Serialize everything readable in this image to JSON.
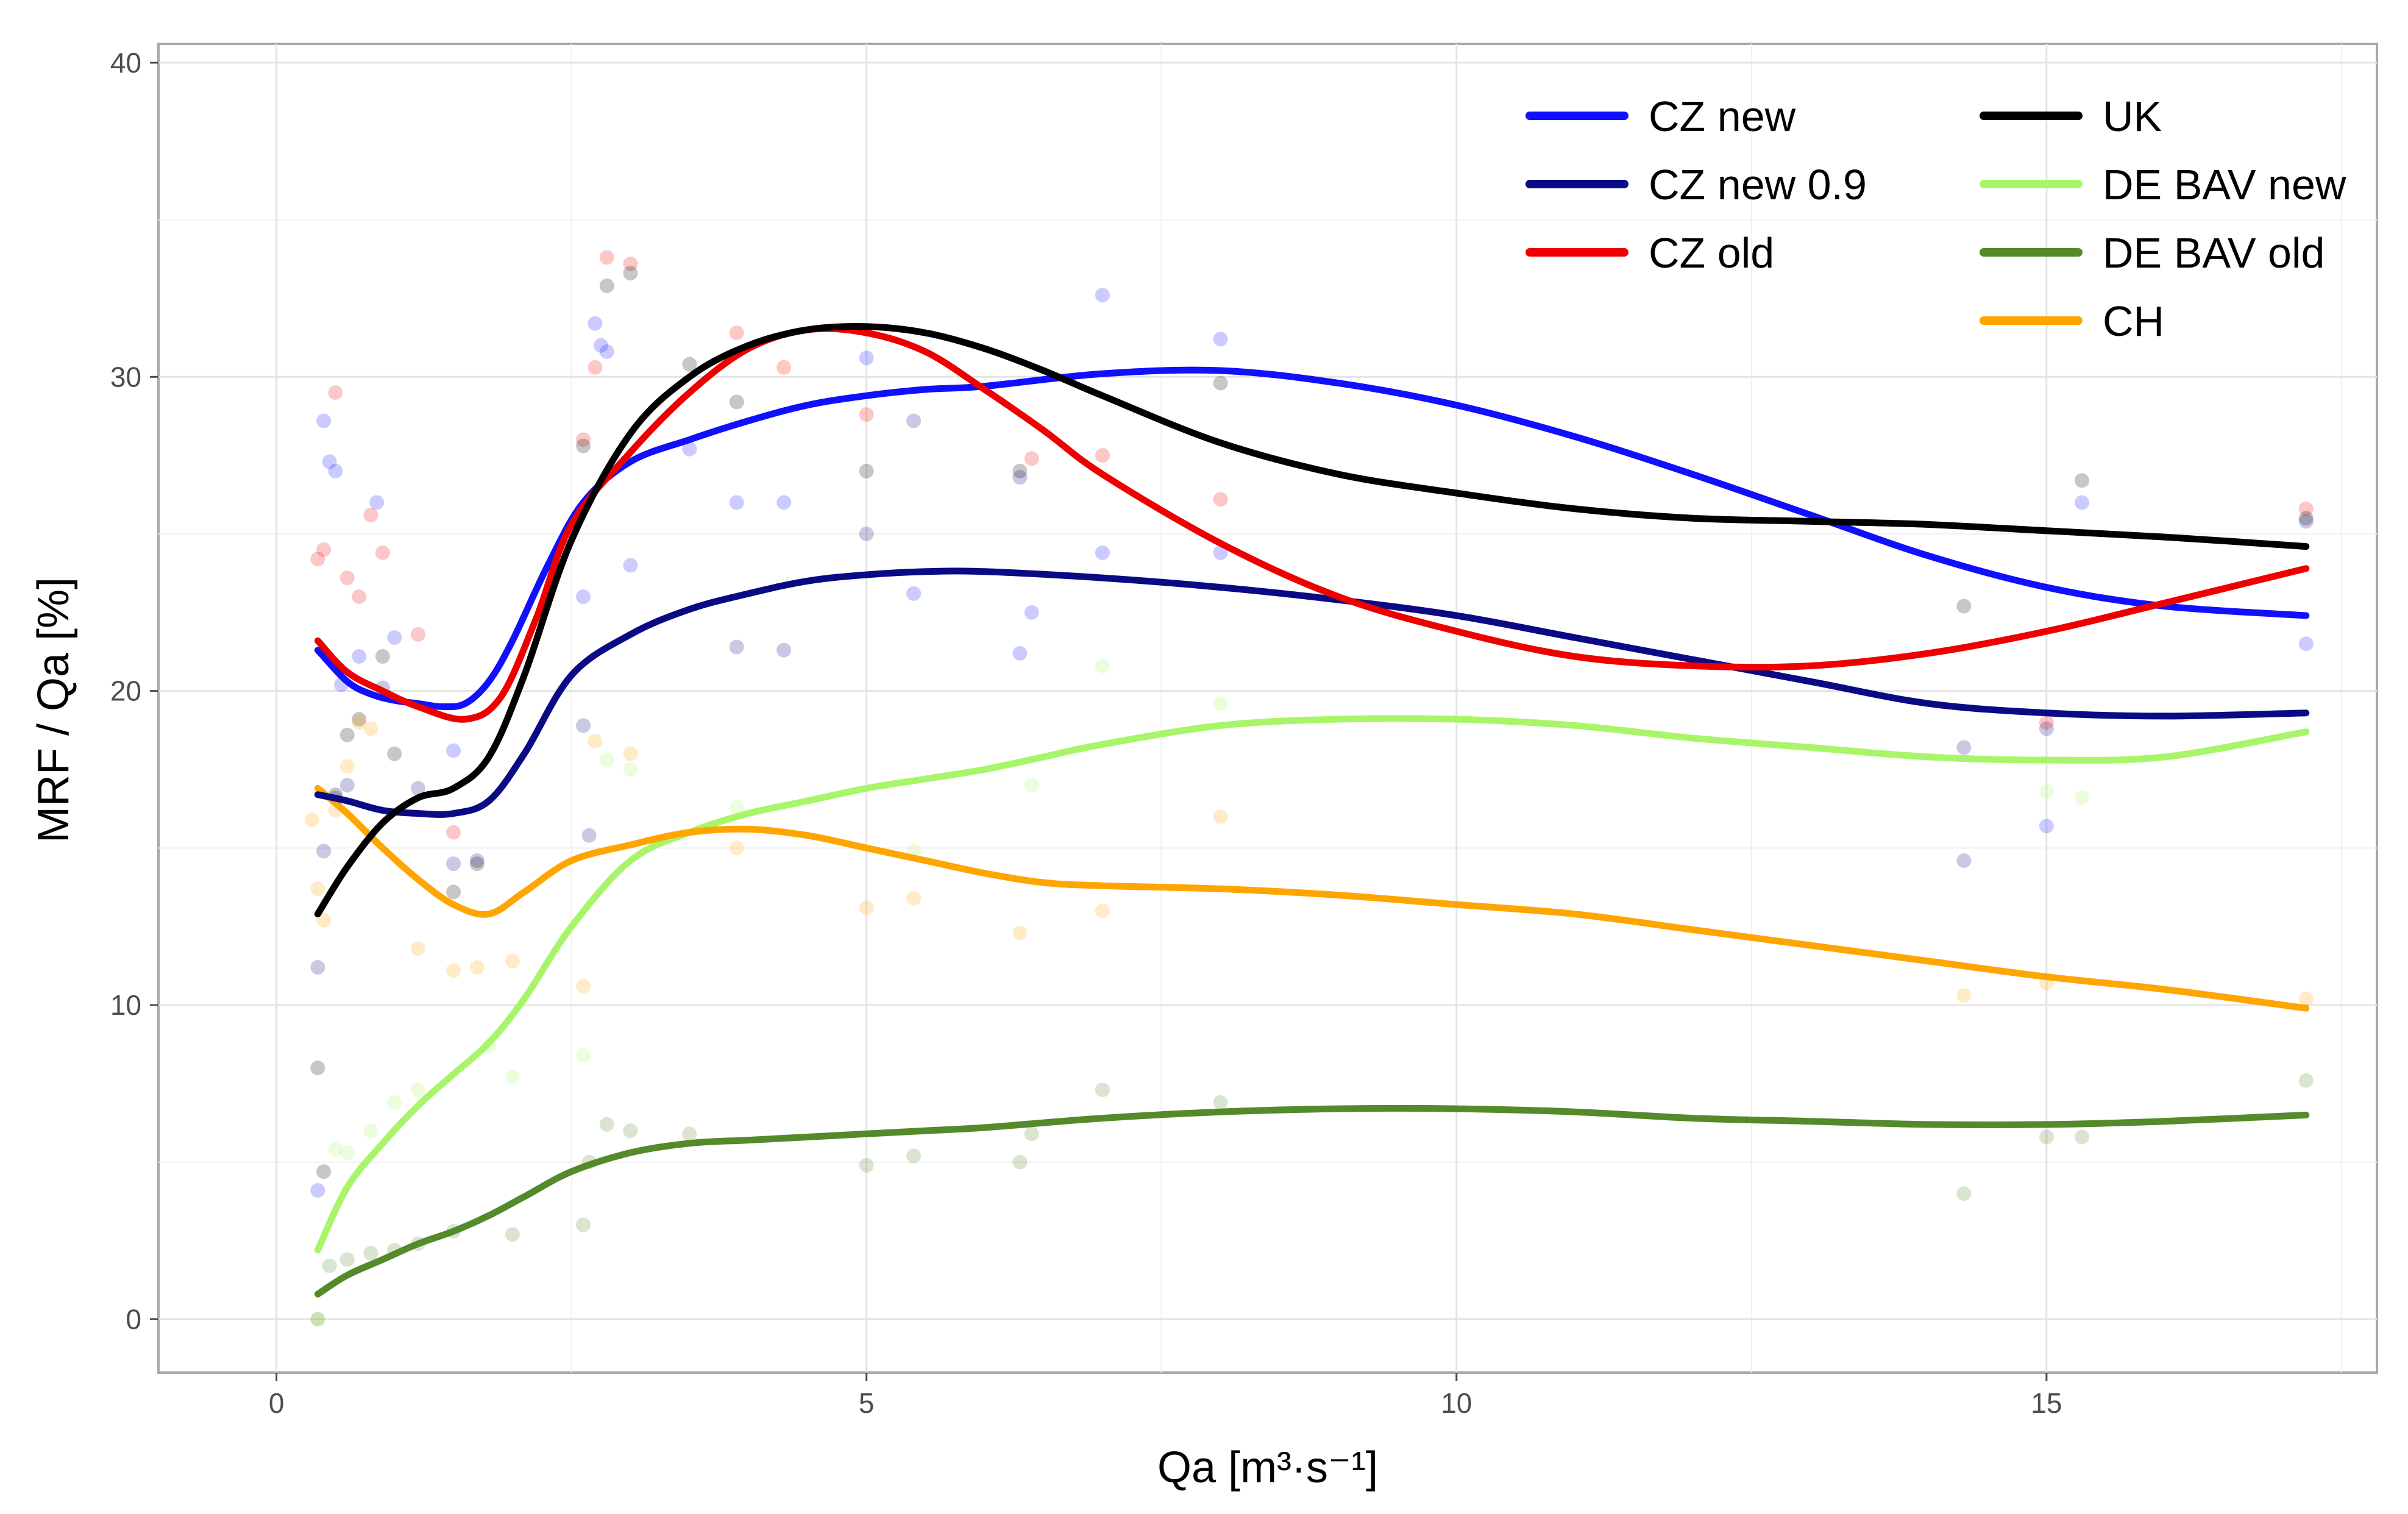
{
  "chart_data": {
    "type": "line",
    "title": "",
    "xlabel": "Qa [m³·s⁻¹]",
    "ylabel": "MRF / Qa [%]",
    "xlim": [
      -1,
      17.8
    ],
    "ylim": [
      -1.7,
      40.6
    ],
    "x_ticks": [
      0,
      5,
      10,
      15
    ],
    "y_ticks": [
      0,
      10,
      20,
      30,
      40
    ],
    "x_tick_labels": [
      "0",
      "5",
      "10",
      "15"
    ],
    "y_tick_labels": [
      "0",
      "10",
      "20",
      "30",
      "40"
    ],
    "grid": true,
    "legend_position": "top-right",
    "series": [
      {
        "name": "CZ new",
        "color": "#1010ff",
        "x": [
          0.35,
          0.6,
          0.8,
          1.0,
          1.2,
          1.4,
          1.6,
          1.8,
          2.0,
          2.3,
          2.6,
          3.0,
          3.5,
          4.0,
          4.5,
          5.0,
          5.5,
          6.0,
          7.0,
          8.0,
          9.0,
          10.0,
          11.0,
          12.0,
          13.0,
          14.0,
          15.0,
          16.0,
          17.2
        ],
        "values": [
          21.3,
          20.3,
          19.9,
          19.7,
          19.6,
          19.5,
          19.6,
          20.3,
          21.6,
          24.0,
          26.0,
          27.3,
          28.0,
          28.6,
          29.1,
          29.4,
          29.6,
          29.7,
          30.1,
          30.2,
          29.8,
          29.1,
          28.1,
          26.9,
          25.6,
          24.3,
          23.3,
          22.7,
          22.4
        ],
        "points": [
          [
            0.35,
            4.1
          ],
          [
            0.4,
            28.6
          ],
          [
            0.45,
            27.3
          ],
          [
            0.5,
            27.0
          ],
          [
            0.55,
            20.2
          ],
          [
            0.7,
            21.1
          ],
          [
            0.85,
            26.0
          ],
          [
            1.0,
            21.7
          ],
          [
            1.5,
            18.1
          ],
          [
            2.6,
            23.0
          ],
          [
            2.7,
            31.7
          ],
          [
            2.75,
            31.0
          ],
          [
            2.8,
            30.8
          ],
          [
            3.0,
            24.0
          ],
          [
            3.5,
            27.7
          ],
          [
            3.9,
            26.0
          ],
          [
            4.3,
            26.0
          ],
          [
            5.0,
            30.6
          ],
          [
            5.4,
            23.1
          ],
          [
            6.3,
            21.2
          ],
          [
            6.4,
            22.5
          ],
          [
            7.0,
            32.6
          ],
          [
            7.0,
            24.4
          ],
          [
            8.0,
            31.2
          ],
          [
            8.0,
            24.4
          ],
          [
            15.0,
            15.7
          ],
          [
            15.3,
            26.0
          ],
          [
            17.2,
            21.5
          ]
        ]
      },
      {
        "name": "CZ new 0.9",
        "color": "#0a0a85",
        "x": [
          0.35,
          0.6,
          0.9,
          1.2,
          1.5,
          1.8,
          2.1,
          2.5,
          3.0,
          3.5,
          4.0,
          4.5,
          5.0,
          5.5,
          6.0,
          7.0,
          8.0,
          9.0,
          10.0,
          11.0,
          12.0,
          13.0,
          14.0,
          15.0,
          16.0,
          17.2
        ],
        "values": [
          16.7,
          16.5,
          16.2,
          16.1,
          16.1,
          16.5,
          18.0,
          20.5,
          21.8,
          22.6,
          23.1,
          23.5,
          23.7,
          23.8,
          23.8,
          23.6,
          23.3,
          22.9,
          22.4,
          21.7,
          21.0,
          20.3,
          19.6,
          19.3,
          19.2,
          19.3
        ],
        "points": [
          [
            0.35,
            11.2
          ],
          [
            0.4,
            14.9
          ],
          [
            0.5,
            16.6
          ],
          [
            0.6,
            17.0
          ],
          [
            0.9,
            20.1
          ],
          [
            1.2,
            16.9
          ],
          [
            1.5,
            14.5
          ],
          [
            1.7,
            14.6
          ],
          [
            2.6,
            18.9
          ],
          [
            2.65,
            15.4
          ],
          [
            3.9,
            21.4
          ],
          [
            4.3,
            21.3
          ],
          [
            5.0,
            25.0
          ],
          [
            5.4,
            28.6
          ],
          [
            6.3,
            26.8
          ],
          [
            14.3,
            14.6
          ],
          [
            14.3,
            18.2
          ],
          [
            15.0,
            18.8
          ],
          [
            17.2,
            25.4
          ]
        ]
      },
      {
        "name": "CZ old",
        "color": "#ee0000",
        "x": [
          0.35,
          0.6,
          0.9,
          1.2,
          1.6,
          1.9,
          2.2,
          2.5,
          3.0,
          3.5,
          4.0,
          4.5,
          5.0,
          5.5,
          6.0,
          6.5,
          7.0,
          8.0,
          9.0,
          10.0,
          11.0,
          12.0,
          13.0,
          14.0,
          15.0,
          16.0,
          17.2
        ],
        "values": [
          21.6,
          20.6,
          20.0,
          19.5,
          19.1,
          19.8,
          22.3,
          25.3,
          27.6,
          29.5,
          30.9,
          31.5,
          31.4,
          30.8,
          29.6,
          28.3,
          26.9,
          24.7,
          23.0,
          21.9,
          21.1,
          20.8,
          20.8,
          21.2,
          21.9,
          22.8,
          23.9
        ],
        "points": [
          [
            0.35,
            24.2
          ],
          [
            0.4,
            24.5
          ],
          [
            0.5,
            29.5
          ],
          [
            0.6,
            23.6
          ],
          [
            0.7,
            23.0
          ],
          [
            0.8,
            25.6
          ],
          [
            0.9,
            24.4
          ],
          [
            1.2,
            21.8
          ],
          [
            1.5,
            15.5
          ],
          [
            2.6,
            28.0
          ],
          [
            2.7,
            30.3
          ],
          [
            2.8,
            33.8
          ],
          [
            3.0,
            33.6
          ],
          [
            3.9,
            31.4
          ],
          [
            4.3,
            30.3
          ],
          [
            5.0,
            28.8
          ],
          [
            6.4,
            27.4
          ],
          [
            7.0,
            27.5
          ],
          [
            8.0,
            26.1
          ],
          [
            15.0,
            19.0
          ],
          [
            17.2,
            25.8
          ]
        ]
      },
      {
        "name": "UK",
        "color": "#000000",
        "x": [
          0.35,
          0.6,
          0.9,
          1.2,
          1.5,
          1.8,
          2.1,
          2.5,
          3.0,
          3.5,
          4.0,
          4.5,
          5.0,
          5.5,
          6.0,
          6.5,
          7.0,
          8.0,
          9.0,
          10.0,
          11.0,
          12.0,
          13.0,
          14.0,
          15.0,
          16.0,
          17.2
        ],
        "values": [
          12.9,
          14.4,
          15.8,
          16.6,
          16.9,
          17.9,
          20.5,
          24.8,
          28.2,
          30.0,
          31.0,
          31.5,
          31.6,
          31.4,
          30.9,
          30.2,
          29.4,
          27.9,
          26.9,
          26.3,
          25.8,
          25.5,
          25.4,
          25.3,
          25.1,
          24.9,
          24.6
        ],
        "points": [
          [
            0.35,
            8.0
          ],
          [
            0.4,
            4.7
          ],
          [
            0.5,
            16.7
          ],
          [
            0.6,
            18.6
          ],
          [
            0.7,
            19.1
          ],
          [
            0.9,
            21.1
          ],
          [
            1.0,
            18.0
          ],
          [
            1.5,
            13.6
          ],
          [
            1.7,
            14.5
          ],
          [
            2.6,
            27.8
          ],
          [
            2.8,
            32.9
          ],
          [
            3.0,
            33.3
          ],
          [
            3.5,
            30.4
          ],
          [
            3.9,
            29.2
          ],
          [
            5.0,
            27.0
          ],
          [
            6.3,
            27.0
          ],
          [
            8.0,
            29.8
          ],
          [
            14.3,
            22.7
          ],
          [
            15.3,
            26.7
          ],
          [
            17.2,
            25.5
          ]
        ]
      },
      {
        "name": "DE BAV new",
        "color": "#a8f56a",
        "x": [
          0.35,
          0.6,
          0.9,
          1.2,
          1.5,
          1.8,
          2.1,
          2.5,
          3.0,
          3.5,
          4.0,
          4.5,
          5.0,
          5.5,
          6.0,
          6.5,
          7.0,
          8.0,
          9.0,
          10.0,
          11.0,
          12.0,
          13.0,
          14.0,
          15.0,
          16.0,
          17.2
        ],
        "values": [
          2.2,
          4.2,
          5.6,
          6.8,
          7.8,
          8.8,
          10.2,
          12.5,
          14.6,
          15.5,
          16.1,
          16.5,
          16.9,
          17.2,
          17.5,
          17.9,
          18.3,
          18.9,
          19.1,
          19.1,
          18.9,
          18.5,
          18.2,
          17.9,
          17.8,
          17.9,
          18.7
        ],
        "points": [
          [
            0.35,
            0.0
          ],
          [
            0.5,
            5.4
          ],
          [
            0.6,
            5.3
          ],
          [
            0.8,
            6.0
          ],
          [
            1.0,
            6.9
          ],
          [
            1.2,
            7.3
          ],
          [
            1.8,
            8.7
          ],
          [
            2.0,
            7.7
          ],
          [
            2.6,
            8.4
          ],
          [
            2.8,
            17.8
          ],
          [
            3.0,
            17.5
          ],
          [
            3.9,
            16.3
          ],
          [
            5.4,
            14.9
          ],
          [
            6.4,
            17.0
          ],
          [
            7.0,
            20.8
          ],
          [
            8.0,
            19.6
          ],
          [
            15.0,
            16.8
          ],
          [
            15.3,
            16.6
          ]
        ]
      },
      {
        "name": "DE BAV old",
        "color": "#548a2a",
        "x": [
          0.35,
          0.6,
          0.9,
          1.2,
          1.5,
          1.8,
          2.1,
          2.5,
          3.0,
          3.5,
          4.0,
          4.5,
          5.0,
          5.5,
          6.0,
          7.0,
          8.0,
          9.0,
          10.0,
          11.0,
          12.0,
          13.0,
          14.0,
          15.0,
          16.0,
          17.2
        ],
        "values": [
          0.8,
          1.4,
          1.9,
          2.4,
          2.8,
          3.3,
          3.9,
          4.7,
          5.3,
          5.6,
          5.7,
          5.8,
          5.9,
          6.0,
          6.1,
          6.4,
          6.6,
          6.7,
          6.7,
          6.6,
          6.4,
          6.3,
          6.2,
          6.2,
          6.3,
          6.5
        ],
        "points": [
          [
            0.35,
            0.0
          ],
          [
            0.45,
            1.7
          ],
          [
            0.6,
            1.9
          ],
          [
            0.8,
            2.1
          ],
          [
            1.0,
            2.2
          ],
          [
            1.2,
            2.4
          ],
          [
            1.5,
            2.8
          ],
          [
            2.0,
            2.7
          ],
          [
            2.6,
            3.0
          ],
          [
            2.65,
            5.0
          ],
          [
            2.8,
            6.2
          ],
          [
            3.0,
            6.0
          ],
          [
            3.5,
            5.9
          ],
          [
            5.0,
            4.9
          ],
          [
            5.4,
            5.2
          ],
          [
            6.3,
            5.0
          ],
          [
            6.4,
            5.9
          ],
          [
            7.0,
            7.3
          ],
          [
            8.0,
            6.9
          ],
          [
            14.3,
            4.0
          ],
          [
            15.0,
            5.8
          ],
          [
            15.3,
            5.8
          ],
          [
            17.2,
            7.6
          ]
        ]
      },
      {
        "name": "CH",
        "color": "#ffa500",
        "x": [
          0.35,
          0.6,
          0.9,
          1.2,
          1.5,
          1.8,
          2.1,
          2.5,
          3.0,
          3.5,
          4.0,
          4.5,
          5.0,
          5.5,
          6.0,
          6.5,
          7.0,
          8.0,
          9.0,
          10.0,
          11.0,
          12.0,
          13.0,
          14.0,
          15.0,
          16.0,
          17.2
        ],
        "values": [
          16.9,
          16.1,
          15.0,
          14.0,
          13.2,
          12.9,
          13.6,
          14.6,
          15.1,
          15.5,
          15.6,
          15.4,
          15.0,
          14.6,
          14.2,
          13.9,
          13.8,
          13.7,
          13.5,
          13.2,
          12.9,
          12.4,
          11.9,
          11.4,
          10.9,
          10.5,
          9.9
        ],
        "points": [
          [
            0.3,
            15.9
          ],
          [
            0.35,
            13.7
          ],
          [
            0.4,
            12.7
          ],
          [
            0.5,
            16.2
          ],
          [
            0.6,
            17.6
          ],
          [
            0.7,
            19.0
          ],
          [
            0.8,
            18.8
          ],
          [
            1.2,
            11.8
          ],
          [
            1.5,
            11.1
          ],
          [
            1.7,
            11.2
          ],
          [
            2.0,
            11.4
          ],
          [
            2.6,
            10.6
          ],
          [
            2.7,
            18.4
          ],
          [
            3.0,
            18.0
          ],
          [
            3.9,
            15.0
          ],
          [
            5.0,
            13.1
          ],
          [
            5.4,
            13.4
          ],
          [
            6.3,
            12.3
          ],
          [
            7.0,
            13.0
          ],
          [
            8.0,
            16.0
          ],
          [
            14.3,
            10.3
          ],
          [
            15.0,
            10.7
          ],
          [
            17.2,
            10.2
          ]
        ]
      }
    ]
  }
}
